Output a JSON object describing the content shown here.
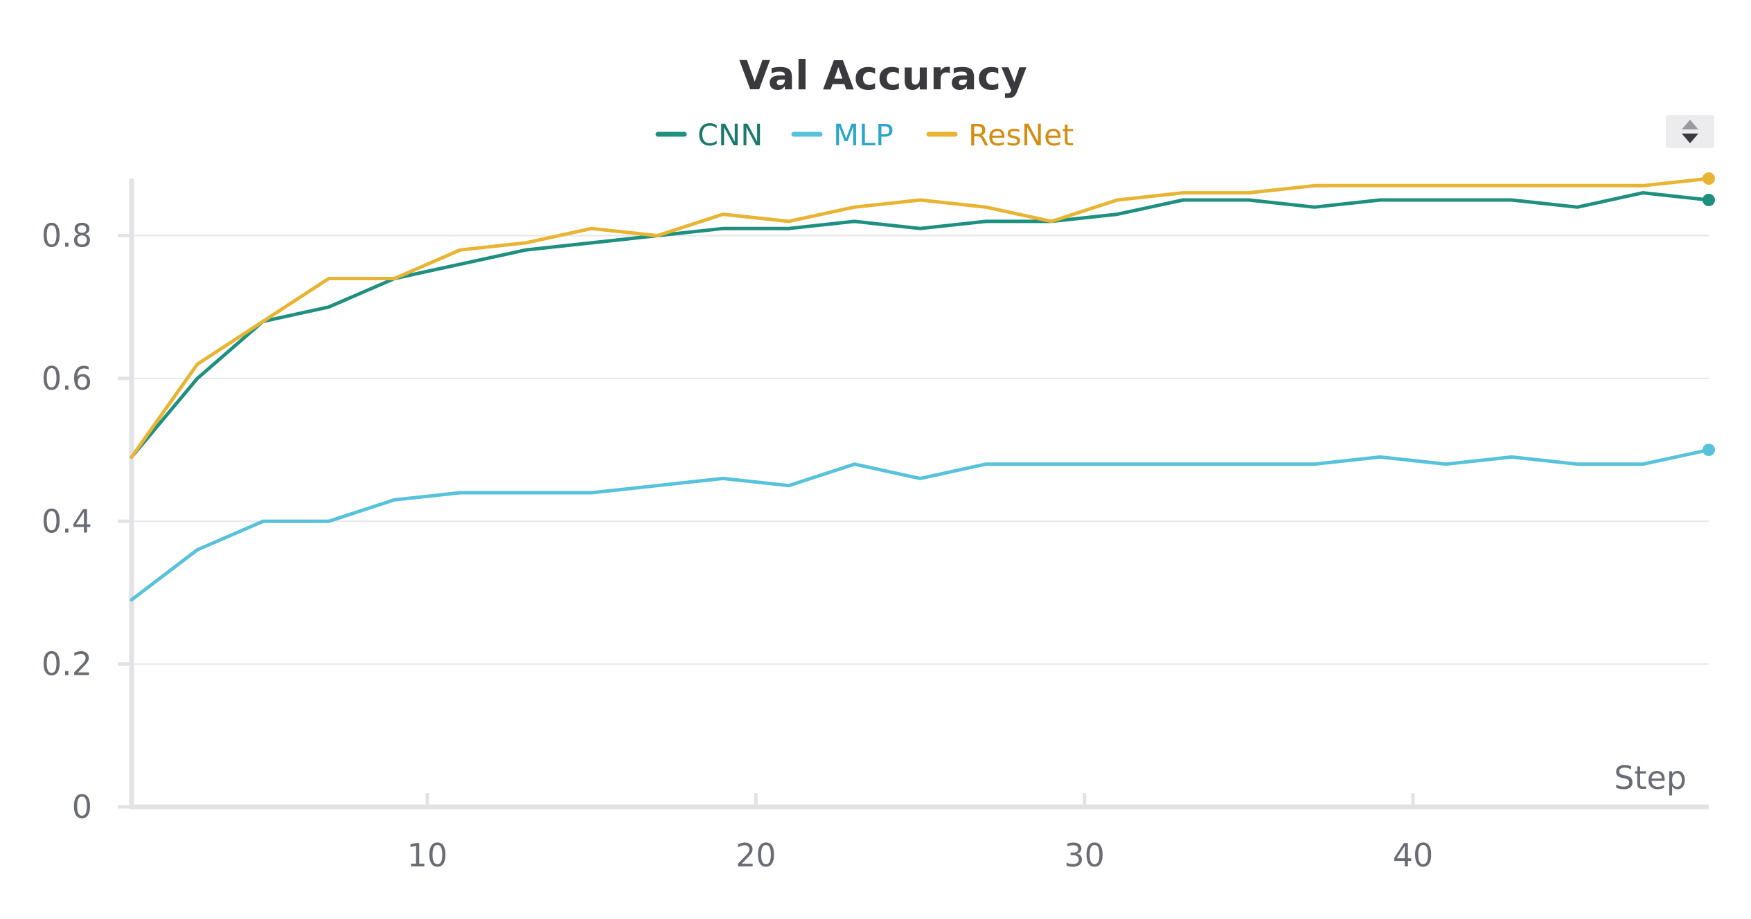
{
  "chart_data": {
    "type": "line",
    "title": "Val Accuracy",
    "xlabel": "Step",
    "ylabel": "",
    "xlim": [
      1,
      49
    ],
    "ylim": [
      0,
      0.88
    ],
    "xticks": [
      10,
      20,
      30,
      40
    ],
    "yticks": [
      0,
      0.2,
      0.4,
      0.6,
      0.8
    ],
    "ytick_labels": [
      "0",
      "0.2",
      "0.4",
      "0.6",
      "0.8"
    ],
    "xtick_labels": [
      "10",
      "20",
      "30",
      "40"
    ],
    "grid": true,
    "legend_position": "top-center",
    "x": [
      1,
      3,
      5,
      7,
      9,
      11,
      13,
      15,
      17,
      19,
      21,
      23,
      25,
      27,
      29,
      31,
      33,
      35,
      37,
      39,
      41,
      43,
      45,
      47,
      49
    ],
    "series": [
      {
        "name": "CNN",
        "color": "#1f9080",
        "values": [
          0.49,
          0.6,
          0.68,
          0.7,
          0.74,
          0.76,
          0.78,
          0.79,
          0.8,
          0.81,
          0.81,
          0.82,
          0.81,
          0.82,
          0.82,
          0.83,
          0.85,
          0.85,
          0.84,
          0.85,
          0.85,
          0.85,
          0.84,
          0.86,
          0.85
        ]
      },
      {
        "name": "MLP",
        "color": "#58c2da",
        "values": [
          0.29,
          0.36,
          0.4,
          0.4,
          0.43,
          0.44,
          0.44,
          0.44,
          0.45,
          0.46,
          0.45,
          0.48,
          0.46,
          0.48,
          0.48,
          0.48,
          0.48,
          0.48,
          0.48,
          0.49,
          0.48,
          0.49,
          0.48,
          0.48,
          0.5
        ]
      },
      {
        "name": "ResNet",
        "color": "#e8b434",
        "values": [
          0.49,
          0.62,
          0.68,
          0.74,
          0.74,
          0.78,
          0.79,
          0.81,
          0.8,
          0.83,
          0.82,
          0.84,
          0.85,
          0.84,
          0.82,
          0.85,
          0.86,
          0.86,
          0.87,
          0.87,
          0.87,
          0.87,
          0.87,
          0.87,
          0.88
        ]
      }
    ],
    "legend_text_colors": {
      "CNN": "#1a7a6c",
      "MLP": "#2aa6c8",
      "ResNet": "#d38e12"
    }
  },
  "controls": {
    "legend_scroll_icon": "up-down-arrows-icon"
  }
}
